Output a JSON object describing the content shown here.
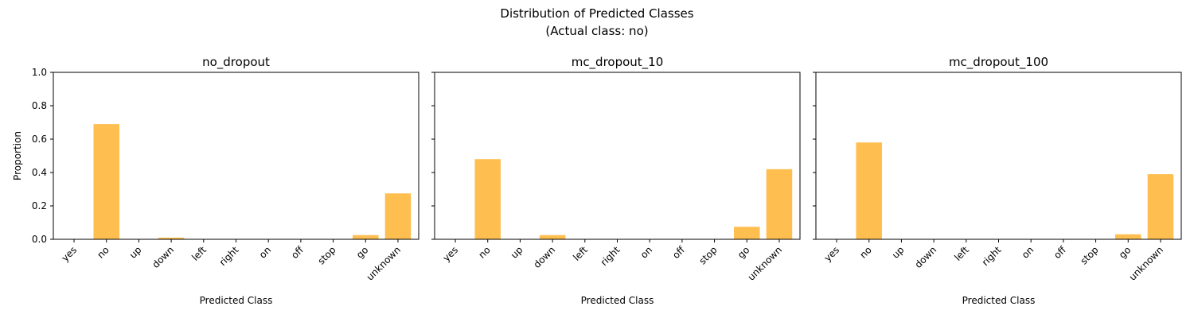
{
  "figure": {
    "title_line1": "Distribution of Predicted Classes",
    "title_line2": "(Actual class: no)"
  },
  "colors": {
    "bar": "#FFBF50",
    "axis": "#000000"
  },
  "chart_data": [
    {
      "type": "bar",
      "title": "no_dropout",
      "xlabel": "Predicted Class",
      "ylabel": "Proportion",
      "ylim": [
        0,
        1
      ],
      "yticks": [
        "0.0",
        "0.2",
        "0.4",
        "0.6",
        "0.8",
        "1.0"
      ],
      "categories": [
        "yes",
        "no",
        "up",
        "down",
        "left",
        "right",
        "on",
        "off",
        "stop",
        "go",
        "unknown"
      ],
      "values": [
        0,
        0.69,
        0,
        0.01,
        0,
        0,
        0,
        0,
        0,
        0.025,
        0.275
      ]
    },
    {
      "type": "bar",
      "title": "mc_dropout_10",
      "xlabel": "Predicted Class",
      "ylabel": "",
      "ylim": [
        0,
        1
      ],
      "categories": [
        "yes",
        "no",
        "up",
        "down",
        "left",
        "right",
        "on",
        "off",
        "stop",
        "go",
        "unknown"
      ],
      "values": [
        0,
        0.48,
        0,
        0.025,
        0,
        0,
        0,
        0,
        0,
        0.075,
        0.42
      ]
    },
    {
      "type": "bar",
      "title": "mc_dropout_100",
      "xlabel": "Predicted Class",
      "ylabel": "",
      "ylim": [
        0,
        1
      ],
      "categories": [
        "yes",
        "no",
        "up",
        "down",
        "left",
        "right",
        "on",
        "off",
        "stop",
        "go",
        "unknown"
      ],
      "values": [
        0,
        0.58,
        0,
        0,
        0,
        0,
        0,
        0,
        0,
        0.03,
        0.39
      ]
    }
  ]
}
